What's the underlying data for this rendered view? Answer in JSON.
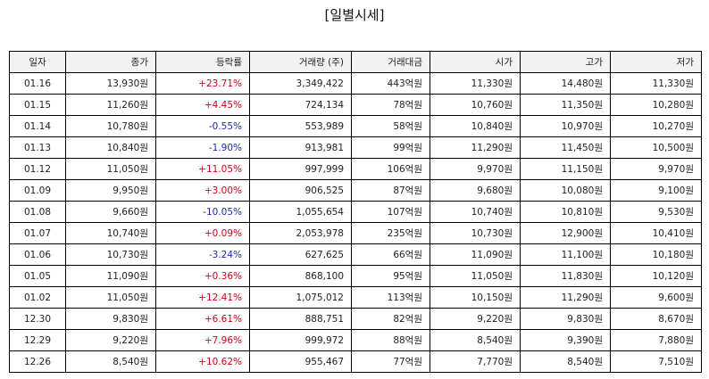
{
  "title": "[일별시세]",
  "columns": [
    "일자",
    "종가",
    "등락률",
    "거래량 (주)",
    "거래대금",
    "시가",
    "고가",
    "저가"
  ],
  "rows": [
    {
      "date": "01.16",
      "close": "13,930원",
      "change": "+23.71%",
      "direction": "up",
      "volume": "3,349,422",
      "amount": "443억원",
      "open": "11,330원",
      "high": "14,480원",
      "low": "11,330원"
    },
    {
      "date": "01.15",
      "close": "11,260원",
      "change": "+4.45%",
      "direction": "up",
      "volume": "724,134",
      "amount": "78억원",
      "open": "10,760원",
      "high": "11,350원",
      "low": "10,280원"
    },
    {
      "date": "01.14",
      "close": "10,780원",
      "change": "-0.55%",
      "direction": "down",
      "volume": "553,989",
      "amount": "58억원",
      "open": "10,840원",
      "high": "10,970원",
      "low": "10,270원"
    },
    {
      "date": "01.13",
      "close": "10,840원",
      "change": "-1.90%",
      "direction": "down",
      "volume": "913,981",
      "amount": "99억원",
      "open": "11,290원",
      "high": "11,450원",
      "low": "10,500원"
    },
    {
      "date": "01.12",
      "close": "11,050원",
      "change": "+11.05%",
      "direction": "up",
      "volume": "997,999",
      "amount": "106억원",
      "open": "9,970원",
      "high": "11,150원",
      "low": "9,970원"
    },
    {
      "date": "01.09",
      "close": "9,950원",
      "change": "+3.00%",
      "direction": "up",
      "volume": "906,525",
      "amount": "87억원",
      "open": "9,680원",
      "high": "10,080원",
      "low": "9,100원"
    },
    {
      "date": "01.08",
      "close": "9,660원",
      "change": "-10.05%",
      "direction": "down",
      "volume": "1,055,654",
      "amount": "107억원",
      "open": "10,740원",
      "high": "10,810원",
      "low": "9,530원"
    },
    {
      "date": "01.07",
      "close": "10,740원",
      "change": "+0.09%",
      "direction": "up",
      "volume": "2,053,978",
      "amount": "235억원",
      "open": "10,730원",
      "high": "12,900원",
      "low": "10,410원"
    },
    {
      "date": "01.06",
      "close": "10,730원",
      "change": "-3.24%",
      "direction": "down",
      "volume": "627,625",
      "amount": "66억원",
      "open": "11,090원",
      "high": "11,100원",
      "low": "10,180원"
    },
    {
      "date": "01.05",
      "close": "11,090원",
      "change": "+0.36%",
      "direction": "up",
      "volume": "868,100",
      "amount": "95억원",
      "open": "11,050원",
      "high": "11,830원",
      "low": "10,120원"
    },
    {
      "date": "01.02",
      "close": "11,050원",
      "change": "+12.41%",
      "direction": "up",
      "volume": "1,075,012",
      "amount": "113억원",
      "open": "10,150원",
      "high": "11,290원",
      "low": "9,600원"
    },
    {
      "date": "12.30",
      "close": "9,830원",
      "change": "+6.61%",
      "direction": "up",
      "volume": "888,751",
      "amount": "82억원",
      "open": "9,220원",
      "high": "9,830원",
      "low": "8,670원"
    },
    {
      "date": "12.29",
      "close": "9,220원",
      "change": "+7.96%",
      "direction": "up",
      "volume": "999,972",
      "amount": "88억원",
      "open": "8,540원",
      "high": "9,390원",
      "low": "7,880원"
    },
    {
      "date": "12.26",
      "close": "8,540원",
      "change": "+10.62%",
      "direction": "up",
      "volume": "955,467",
      "amount": "77억원",
      "open": "7,770원",
      "high": "8,540원",
      "low": "7,510원"
    }
  ],
  "colors": {
    "up": "#d0021b",
    "down": "#1f2aa8",
    "header_bg": "#f2f2f2",
    "border": "#000000"
  }
}
